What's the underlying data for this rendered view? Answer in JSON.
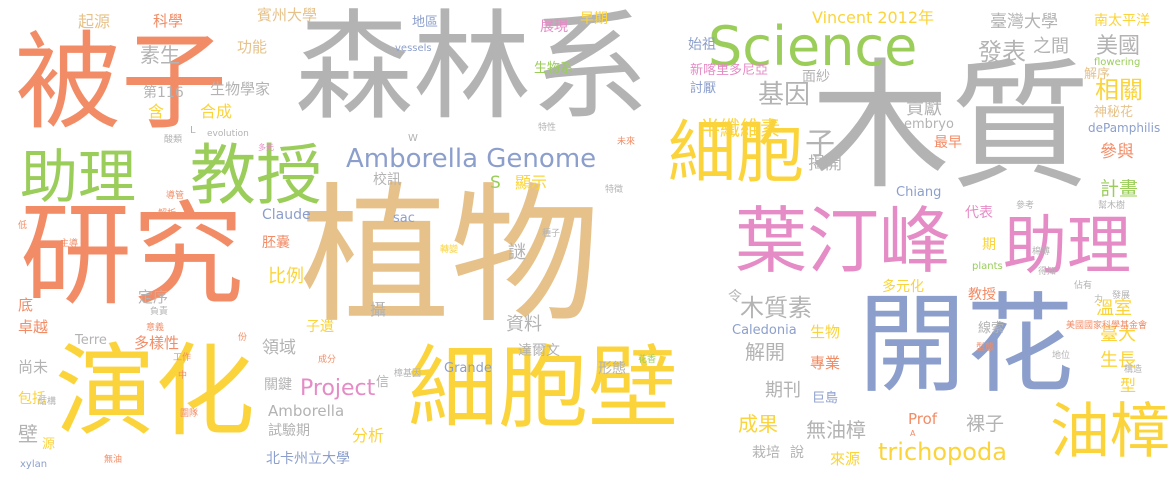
{
  "palette": {
    "green": "#9acd5a",
    "orange": "#f28c66",
    "gray": "#b3b3b3",
    "tan": "#e6c28a",
    "blue": "#8c9fcc",
    "yellow": "#fbd43c",
    "pink": "#e58bc6"
  },
  "words": [
    {
      "text": "植物",
      "color": "tan"
    },
    {
      "text": "木質",
      "color": "gray"
    },
    {
      "text": "森林系",
      "color": "gray"
    },
    {
      "text": "研究",
      "color": "orange"
    },
    {
      "text": "被子",
      "color": "orange"
    },
    {
      "text": "開花",
      "color": "blue"
    },
    {
      "text": "細胞壁",
      "color": "yellow"
    },
    {
      "text": "演化",
      "color": "yellow"
    },
    {
      "text": "教授",
      "color": "green"
    },
    {
      "text": "助理",
      "color": "green"
    },
    {
      "text": "Science",
      "color": "green"
    },
    {
      "text": "葉汀峰",
      "color": "pink"
    },
    {
      "text": "助理",
      "color": "pink"
    },
    {
      "text": "細胞",
      "color": "yellow"
    },
    {
      "text": "油樟",
      "color": "yellow"
    },
    {
      "text": "Amborella Genome",
      "color": "blue"
    },
    {
      "text": "Project",
      "color": "pink"
    },
    {
      "text": "trichopoda",
      "color": "yellow"
    },
    {
      "text": "木質素",
      "color": "gray"
    },
    {
      "text": "基因",
      "color": "gray"
    },
    {
      "text": "發表",
      "color": "gray"
    },
    {
      "text": "美國",
      "color": "gray"
    },
    {
      "text": "相關",
      "color": "yellow"
    },
    {
      "text": "半纖維素",
      "color": "yellow"
    },
    {
      "text": "子",
      "color": "gray"
    },
    {
      "text": "素生",
      "color": "gray"
    },
    {
      "text": "起源",
      "color": "tan"
    },
    {
      "text": "科學",
      "color": "orange"
    },
    {
      "text": "賓州大學",
      "color": "tan"
    },
    {
      "text": "地區",
      "color": "blue"
    },
    {
      "text": "早期",
      "color": "yellow"
    },
    {
      "text": "展現",
      "color": "pink"
    },
    {
      "text": "功能",
      "color": "tan"
    },
    {
      "text": "Vincent 2012年",
      "color": "yellow"
    },
    {
      "text": "臺灣大學",
      "color": "gray"
    },
    {
      "text": "南太平洋",
      "color": "yellow"
    },
    {
      "text": "之間",
      "color": "gray"
    },
    {
      "text": "始祖",
      "color": "blue"
    },
    {
      "text": "生物系",
      "color": "green"
    },
    {
      "text": "vessels",
      "color": "blue"
    },
    {
      "text": "解序",
      "color": "tan"
    },
    {
      "text": "flowering",
      "color": "green"
    },
    {
      "text": "新喀里多尼亞",
      "color": "pink"
    },
    {
      "text": "討厭",
      "color": "blue"
    },
    {
      "text": "面紗",
      "color": "gray"
    },
    {
      "text": "貢獻",
      "color": "gray"
    },
    {
      "text": "第116",
      "color": "gray"
    },
    {
      "text": "生物學家",
      "color": "gray"
    },
    {
      "text": "合成",
      "color": "yellow"
    },
    {
      "text": "含",
      "color": "yellow"
    },
    {
      "text": "神秘花",
      "color": "tan"
    },
    {
      "text": "embryo",
      "color": "gray"
    },
    {
      "text": "dePamphilis",
      "color": "blue"
    },
    {
      "text": "最早",
      "color": "orange"
    },
    {
      "text": "參與",
      "color": "orange"
    },
    {
      "text": "顯示",
      "color": "yellow"
    },
    {
      "text": "S",
      "color": "green"
    },
    {
      "text": "校訊",
      "color": "gray"
    },
    {
      "text": "揭開",
      "color": "gray"
    },
    {
      "text": "Chiang",
      "color": "blue"
    },
    {
      "text": "計畫",
      "color": "green"
    },
    {
      "text": "代表",
      "color": "pink"
    },
    {
      "text": "Claude",
      "color": "blue"
    },
    {
      "text": "sac",
      "color": "blue"
    },
    {
      "text": "胚囊",
      "color": "orange"
    },
    {
      "text": "謎",
      "color": "gray"
    },
    {
      "text": "比例",
      "color": "yellow"
    },
    {
      "text": "期",
      "color": "yellow"
    },
    {
      "text": "定序",
      "color": "gray"
    },
    {
      "text": "底",
      "color": "orange"
    },
    {
      "text": "令",
      "color": "gray"
    },
    {
      "text": "多元化",
      "color": "yellow"
    },
    {
      "text": "教授",
      "color": "orange"
    },
    {
      "text": "溫室",
      "color": "yellow"
    },
    {
      "text": "卓越",
      "color": "orange"
    },
    {
      "text": "Terre",
      "color": "gray"
    },
    {
      "text": "攝",
      "color": "gray"
    },
    {
      "text": "子遺",
      "color": "yellow"
    },
    {
      "text": "資料",
      "color": "gray"
    },
    {
      "text": "Caledonia",
      "color": "blue"
    },
    {
      "text": "生物",
      "color": "yellow"
    },
    {
      "text": "線索",
      "color": "gray"
    },
    {
      "text": "臺大",
      "color": "yellow"
    },
    {
      "text": "多樣性",
      "color": "orange"
    },
    {
      "text": "領域",
      "color": "gray"
    },
    {
      "text": "解開",
      "color": "gray"
    },
    {
      "text": "專業",
      "color": "orange"
    },
    {
      "text": "生長",
      "color": "yellow"
    },
    {
      "text": "尚未",
      "color": "gray"
    },
    {
      "text": "達爾文",
      "color": "gray"
    },
    {
      "text": "Grande",
      "color": "blue"
    },
    {
      "text": "形態",
      "color": "gray"
    },
    {
      "text": "期刊",
      "color": "gray"
    },
    {
      "text": "巨島",
      "color": "blue"
    },
    {
      "text": "型",
      "color": "yellow"
    },
    {
      "text": "包括",
      "color": "yellow"
    },
    {
      "text": "關鍵",
      "color": "gray"
    },
    {
      "text": "Amborella",
      "color": "gray"
    },
    {
      "text": "試驗期",
      "color": "gray"
    },
    {
      "text": "分析",
      "color": "yellow"
    },
    {
      "text": "Prof",
      "color": "orange"
    },
    {
      "text": "成果",
      "color": "yellow"
    },
    {
      "text": "無油樟",
      "color": "gray"
    },
    {
      "text": "裸子",
      "color": "gray"
    },
    {
      "text": "壁",
      "color": "gray"
    },
    {
      "text": "北卡州立大學",
      "color": "blue"
    },
    {
      "text": "來源",
      "color": "yellow"
    },
    {
      "text": "栽培",
      "color": "gray"
    },
    {
      "text": "說",
      "color": "gray"
    },
    {
      "text": "源",
      "color": "yellow"
    },
    {
      "text": "xylan",
      "color": "blue"
    },
    {
      "text": "結構",
      "color": "gray"
    },
    {
      "text": "無油",
      "color": "orange"
    },
    {
      "text": "圍隊",
      "color": "orange"
    },
    {
      "text": "美國國家科學基金會",
      "color": "orange"
    },
    {
      "text": "型態",
      "color": "orange"
    },
    {
      "text": "構造",
      "color": "gray"
    },
    {
      "text": "地位",
      "color": "gray"
    },
    {
      "text": "plants",
      "color": "green"
    },
    {
      "text": "得知",
      "color": "gray"
    },
    {
      "text": "發展",
      "color": "gray"
    },
    {
      "text": "佔有",
      "color": "gray"
    },
    {
      "text": "力",
      "color": "gray"
    },
    {
      "text": "W",
      "color": "gray"
    },
    {
      "text": "L",
      "color": "gray"
    },
    {
      "text": "evolution",
      "color": "gray"
    },
    {
      "text": "多元",
      "color": "pink"
    },
    {
      "text": "特性",
      "color": "gray"
    },
    {
      "text": "未來",
      "color": "orange"
    },
    {
      "text": "特徵",
      "color": "gray"
    },
    {
      "text": "導管",
      "color": "orange"
    },
    {
      "text": "解析",
      "color": "orange"
    },
    {
      "text": "主導",
      "color": "orange"
    },
    {
      "text": "負責",
      "color": "gray"
    },
    {
      "text": "意義",
      "color": "orange"
    },
    {
      "text": "成分",
      "color": "orange"
    },
    {
      "text": "工作",
      "color": "orange"
    },
    {
      "text": "中",
      "color": "orange"
    },
    {
      "text": "份",
      "color": "orange"
    },
    {
      "text": "信",
      "color": "gray"
    },
    {
      "text": "樟基因",
      "color": "gray"
    },
    {
      "text": "花香",
      "color": "green"
    },
    {
      "text": "轉變",
      "color": "yellow"
    },
    {
      "text": "種子",
      "color": "gray"
    },
    {
      "text": "參考",
      "color": "gray"
    },
    {
      "text": "幫木樹",
      "color": "gray"
    },
    {
      "text": "棉薄",
      "color": "gray"
    },
    {
      "text": "低",
      "color": "orange"
    },
    {
      "text": "酸類",
      "color": "gray"
    },
    {
      "text": "A",
      "color": "orange"
    }
  ]
}
